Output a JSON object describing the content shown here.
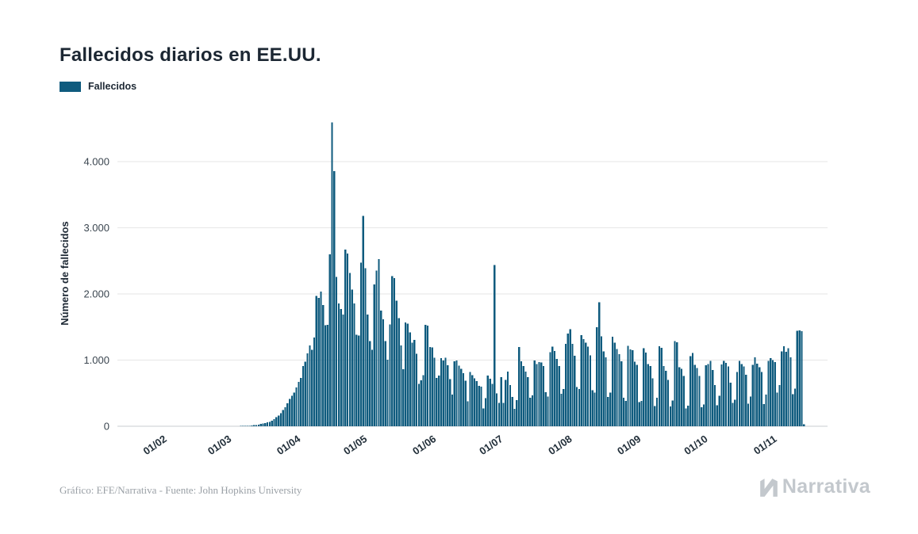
{
  "page": {
    "title": "Fallecidos diarios en EE.UU."
  },
  "legend": {
    "label": "Fallecidos",
    "swatch_color": "#0F5B7E"
  },
  "footer": {
    "credit": "Gráfico: EFE/Narrativa - Fuente: John Hopkins University",
    "brand": "Narrativa"
  },
  "chart_data": {
    "type": "bar",
    "title": "Fallecidos diarios en EE.UU.",
    "series_name": "Fallecidos",
    "xlabel": "",
    "ylabel": "Número de fallecidos",
    "bar_color": "#0F5B7E",
    "grid": "horizontal",
    "legend_position": "top-left",
    "ylim": [
      0,
      4750
    ],
    "y_ticks": [
      {
        "value": 0,
        "label": "0"
      },
      {
        "value": 1000,
        "label": "1.000"
      },
      {
        "value": 2000,
        "label": "2.000"
      },
      {
        "value": 3000,
        "label": "3.000"
      },
      {
        "value": 4000,
        "label": "4.000"
      }
    ],
    "x_start_date": "22/01/2020",
    "x_frequency": "daily",
    "x_ticks": [
      {
        "day_index": 10,
        "label": "01/02"
      },
      {
        "day_index": 39,
        "label": "01/03"
      },
      {
        "day_index": 70,
        "label": "01/04"
      },
      {
        "day_index": 100,
        "label": "01/05"
      },
      {
        "day_index": 131,
        "label": "01/06"
      },
      {
        "day_index": 161,
        "label": "01/07"
      },
      {
        "day_index": 192,
        "label": "01/08"
      },
      {
        "day_index": 223,
        "label": "01/09"
      },
      {
        "day_index": 253,
        "label": "01/10"
      },
      {
        "day_index": 284,
        "label": "01/11"
      }
    ],
    "values": [
      0,
      0,
      0,
      0,
      0,
      0,
      0,
      0,
      0,
      0,
      0,
      0,
      0,
      0,
      0,
      0,
      0,
      0,
      0,
      0,
      0,
      0,
      0,
      0,
      0,
      0,
      0,
      0,
      0,
      0,
      0,
      0,
      0,
      0,
      0,
      0,
      0,
      0,
      0,
      1,
      1,
      2,
      3,
      4,
      6,
      7,
      5,
      8,
      12,
      16,
      21,
      27,
      34,
      41,
      50,
      58,
      64,
      85,
      108,
      140,
      163,
      196,
      247,
      288,
      345,
      411,
      459,
      509,
      588,
      672,
      729,
      909,
      975,
      1104,
      1223,
      1153,
      1342,
      1973,
      1943,
      2035,
      1830,
      1528,
      1535,
      2598,
      4591,
      3857,
      2260,
      1856,
      1772,
      1687,
      2672,
      2612,
      2319,
      2065,
      1858,
      1384,
      1369,
      2471,
      3179,
      2390,
      1691,
      1288,
      1153,
      2144,
      2353,
      2528,
      1751,
      1615,
      1290,
      1008,
      1537,
      2271,
      2239,
      1898,
      1632,
      1224,
      865,
      1568,
      1552,
      1418,
      1263,
      1304,
      1098,
      638,
      693,
      774,
      1535,
      1521,
      1199,
      1193,
      1036,
      730,
      768,
      1031,
      995,
      1036,
      920,
      714,
      481,
      981,
      993,
      919,
      868,
      800,
      691,
      379,
      819,
      771,
      725,
      680,
      611,
      598,
      271,
      424,
      769,
      719,
      638,
      2437,
      500,
      354,
      743,
      351,
      700,
      829,
      623,
      442,
      263,
      397,
      1195,
      984,
      908,
      824,
      740,
      430,
      468,
      997,
      941,
      969,
      963,
      908,
      516,
      450,
      1120,
      1205,
      1140,
      1019,
      908,
      490,
      560,
      1244,
      1403,
      1465,
      1244,
      1064,
      592,
      565,
      1380,
      1320,
      1262,
      1203,
      1069,
      546,
      510,
      1499,
      1877,
      1357,
      1130,
      1043,
      445,
      510,
      1355,
      1263,
      1169,
      1089,
      981,
      429,
      385,
      1215,
      1163,
      1148,
      974,
      930,
      363,
      383,
      1180,
      1113,
      940,
      911,
      723,
      306,
      430,
      1208,
      1184,
      908,
      840,
      700,
      300,
      390,
      1290,
      1270,
      890,
      870,
      760,
      270,
      310,
      1060,
      1110,
      930,
      880,
      760,
      290,
      330,
      920,
      940,
      990,
      850,
      620,
      320,
      460,
      935,
      987,
      957,
      902,
      660,
      351,
      402,
      822,
      989,
      941,
      903,
      778,
      342,
      451,
      929,
      1041,
      948,
      892,
      818,
      338,
      482,
      988,
      1031,
      1002,
      972,
      512,
      623,
      1132,
      1208,
      1123,
      1178,
      1041,
      483,
      571,
      1441,
      1452,
      1437,
      32
    ]
  }
}
